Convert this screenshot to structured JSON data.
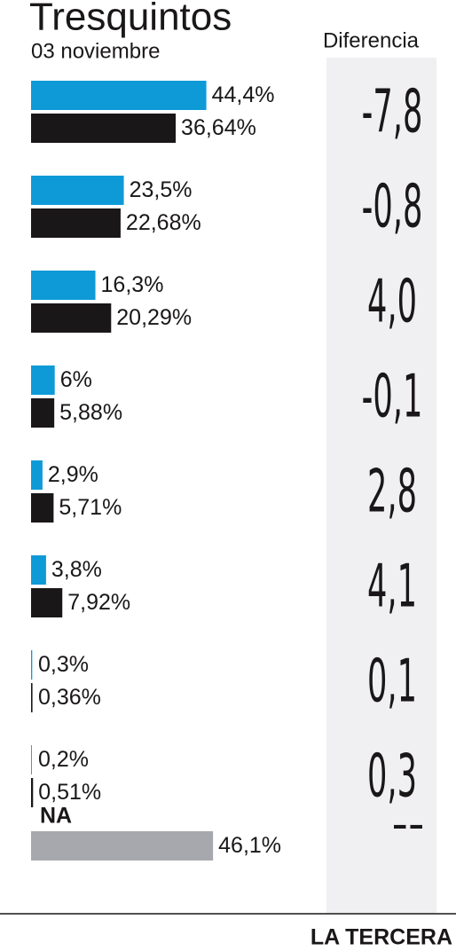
{
  "chart_data": {
    "type": "bar",
    "orientation": "horizontal",
    "title": "Tresquintos",
    "subtitle": "03 noviembre",
    "source": "LA TERCERA",
    "categories": [
      null,
      null,
      null,
      null,
      null,
      null,
      null,
      null
    ],
    "series": [
      {
        "color": "#0e9ad7",
        "values": [
          44.4,
          23.5,
          16.3,
          6,
          2.9,
          3.8,
          0.3,
          0.2
        ],
        "value_labels": [
          "44,4%",
          "23,5%",
          "16,3%",
          "6%",
          "2,9%",
          "3,8%",
          "0,3%",
          "0,2%"
        ]
      },
      {
        "color": "#1a1718",
        "values": [
          36.64,
          22.68,
          20.29,
          5.88,
          5.71,
          7.92,
          0.36,
          0.51
        ],
        "value_labels": [
          "36,64%",
          "22,68%",
          "20,29%",
          "5,88%",
          "5,71%",
          "7,92%",
          "0,36%",
          "0,51%"
        ]
      }
    ],
    "difference": {
      "title": "Diferencia",
      "values": [
        -7.8,
        -0.8,
        4.0,
        -0.1,
        2.8,
        4.1,
        0.1,
        0.3
      ],
      "value_labels": [
        "-7,8",
        "-0,8",
        "4,0",
        "-0,1",
        "2,8",
        "4,1",
        "0,1",
        "0,3"
      ]
    },
    "na": {
      "label": "NA",
      "value": 46.1,
      "value_label": "46,1%",
      "color": "#a7a8ad",
      "difference": "--"
    }
  }
}
